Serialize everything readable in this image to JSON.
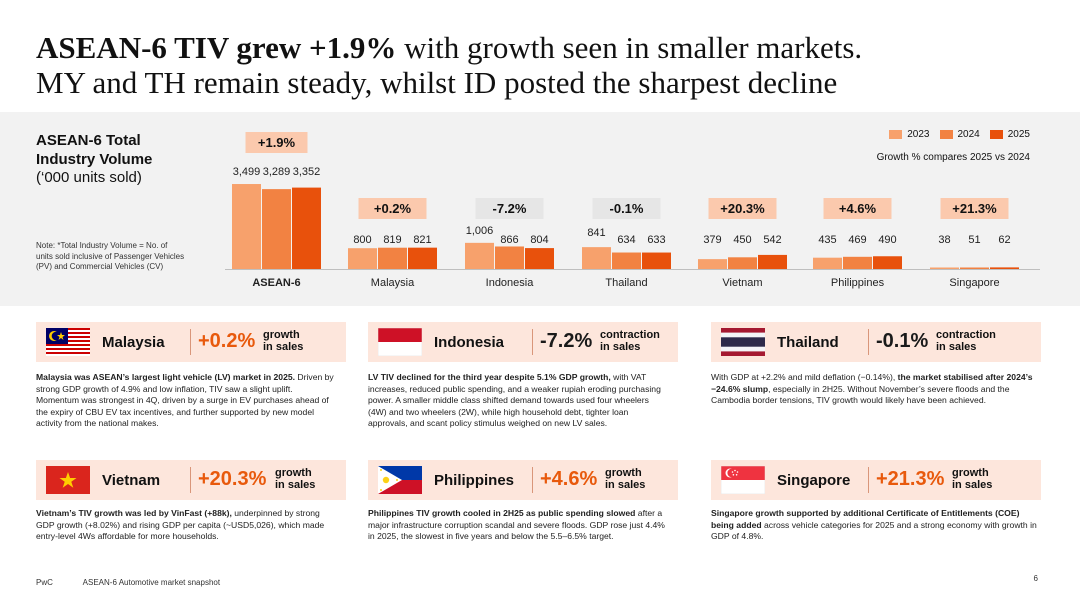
{
  "title": {
    "bold": "ASEAN-6 TIV grew +1.9%",
    "rest_line1": " with growth seen in smaller markets.",
    "line2": "MY and TH remain steady, whilst ID posted the sharpest decline"
  },
  "chart_data": {
    "type": "bar",
    "title_line1": "ASEAN-6 Total",
    "title_line2": "Industry Volume",
    "unit": "(‘000 units sold)",
    "note": "Note: *Total Industry Volume = No. of units sold inclusive of Passenger Vehicles (PV) and Commercial Vehicles (CV)",
    "growth_note": "Growth % compares 2025 vs 2024",
    "categories": [
      "ASEAN-6",
      "Malaysia",
      "Indonesia",
      "Thailand",
      "Vietnam",
      "Philippines",
      "Singapore"
    ],
    "series": [
      {
        "name": "2023",
        "color": "#f7a16c",
        "values": [
          3499,
          800,
          1006,
          841,
          379,
          435,
          38
        ]
      },
      {
        "name": "2024",
        "color": "#f28242",
        "values": [
          3289,
          819,
          866,
          634,
          450,
          469,
          51
        ]
      },
      {
        "name": "2025",
        "color": "#e8510c",
        "values": [
          3352,
          821,
          804,
          633,
          542,
          490,
          62
        ]
      }
    ],
    "value_labels": [
      [
        "3,499",
        "3,289",
        "3,352"
      ],
      [
        "800",
        "819",
        "821"
      ],
      [
        "1,006",
        "866",
        "804"
      ],
      [
        "841",
        "634",
        "633"
      ],
      [
        "379",
        "450",
        "542"
      ],
      [
        "435",
        "469",
        "490"
      ],
      [
        "38",
        "51",
        "62"
      ]
    ],
    "growth": [
      "+1.9%",
      "+0.2%",
      "-7.2%",
      "-0.1%",
      "+20.3%",
      "+4.6%",
      "+21.3%"
    ],
    "growth_positive": [
      true,
      true,
      false,
      false,
      true,
      true,
      true
    ]
  },
  "cards": [
    {
      "country": "Malaysia",
      "pct": "+0.2%",
      "type1": "growth",
      "type2": "in sales",
      "bold": "Malaysia was ASEAN’s largest light vehicle (LV) market in 2025.",
      "text": " Driven by strong GDP growth of 4.9% and low inflation, TIV saw a slight uplift. Momentum was strongest in 4Q, driven by a surge in EV purchases ahead of the expiry of CBU EV tax incentives, and further supported by new model activity from the national makes.",
      "post_bold": "",
      "post_text": ""
    },
    {
      "country": "Indonesia",
      "pct": "-7.2%",
      "type1": "contraction",
      "type2": "in sales",
      "bold": "LV TIV declined for the third year despite 5.1% GDP growth,",
      "text": " with VAT increases, reduced public spending, and a weaker rupiah eroding purchasing power. A smaller middle class shifted demand towards used four wheelers (4W) and two wheelers (2W), while high household debt, tighter loan approvals, and scant policy stimulus weighed on new LV sales.",
      "post_bold": "",
      "post_text": ""
    },
    {
      "country": "Thailand",
      "pct": "-0.1%",
      "type1": "contraction",
      "type2": "in sales",
      "bold": "",
      "text": "With GDP at +2.2% and mild deflation (−0.14%), ",
      "post_bold": "the market stabilised after 2024’s −24.6% slump",
      "post_text": ", especially in 2H25. Without November’s severe floods and the Cambodia border tensions, TIV growth would likely have been achieved."
    },
    {
      "country": "Vietnam",
      "pct": "+20.3%",
      "type1": "growth",
      "type2": "in sales",
      "bold": "Vietnam’s TIV growth was led by VinFast (+88k),",
      "text": " underpinned by strong GDP growth (+8.02%) and rising GDP per capita (~USD5,026), which made entry-level 4Ws affordable for more households.",
      "post_bold": "",
      "post_text": ""
    },
    {
      "country": "Philippines",
      "pct": "+4.6%",
      "type1": "growth",
      "type2": "in sales",
      "bold": "Philippines TIV growth cooled in 2H25 as public spending slowed",
      "text": " after a major infrastructure corruption scandal and severe floods. GDP rose just 4.4% in 2025, the slowest in five years and below the 5.5–6.5% target.",
      "post_bold": "",
      "post_text": ""
    },
    {
      "country": "Singapore",
      "pct": "+21.3%",
      "type1": "growth",
      "type2": "in sales",
      "bold": "Singapore growth supported by additional Certificate of Entitlements (COE) being added",
      "text": " across vehicle categories for 2025 and a strong economy with growth in GDP of 4.8%.",
      "post_bold": "",
      "post_text": ""
    }
  ],
  "footer": {
    "brand": "PwC",
    "doc": "ASEAN-6 Automotive market snapshot",
    "page": "6"
  }
}
